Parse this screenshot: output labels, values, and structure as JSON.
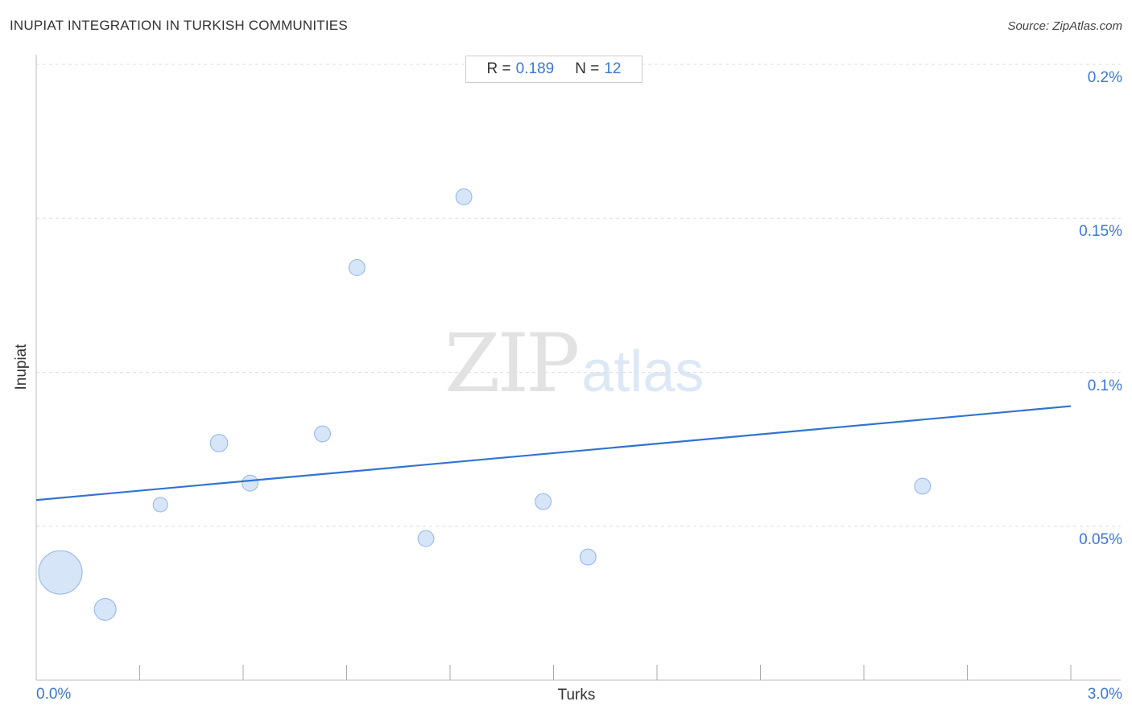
{
  "header": {
    "title": "INUPIAT INTEGRATION IN TURKISH COMMUNITIES",
    "source": "Source: ZipAtlas.com"
  },
  "stats": {
    "r_label": "R =",
    "r_value": "0.189",
    "n_label": "N =",
    "n_value": "12"
  },
  "watermark": {
    "zip": "ZIP",
    "atlas": "atlas"
  },
  "colors": {
    "accent": "#3a78d4",
    "point_fill": "#cfe0f7",
    "point_stroke": "#8fb4e6",
    "trend_line": "#2f74d0",
    "grid": "#dddddd"
  },
  "chart_data": {
    "type": "scatter",
    "title": "INUPIAT INTEGRATION IN TURKISH COMMUNITIES",
    "xlabel": "Turks",
    "ylabel": "Inupiat",
    "xlim": [
      0,
      3.0
    ],
    "ylim": [
      0,
      0.2
    ],
    "x_tick_labels": [
      "0.0%",
      "3.0%"
    ],
    "y_ticks": [
      {
        "value": 0.05,
        "label": "0.05%"
      },
      {
        "value": 0.1,
        "label": "0.1%"
      },
      {
        "value": 0.15,
        "label": "0.15%"
      },
      {
        "value": 0.2,
        "label": "0.2%"
      }
    ],
    "grid": "horizontal dashed",
    "points": [
      {
        "x": 0.07,
        "y": 0.035,
        "weight": 3
      },
      {
        "x": 0.2,
        "y": 0.023,
        "weight": 1.5
      },
      {
        "x": 0.36,
        "y": 0.057,
        "weight": 1
      },
      {
        "x": 0.53,
        "y": 0.077,
        "weight": 1.2
      },
      {
        "x": 0.62,
        "y": 0.064,
        "weight": 1.1
      },
      {
        "x": 0.83,
        "y": 0.08,
        "weight": 1.1
      },
      {
        "x": 0.93,
        "y": 0.134,
        "weight": 1.1
      },
      {
        "x": 1.13,
        "y": 0.046,
        "weight": 1.1
      },
      {
        "x": 1.24,
        "y": 0.157,
        "weight": 1.1
      },
      {
        "x": 1.47,
        "y": 0.058,
        "weight": 1.1
      },
      {
        "x": 1.6,
        "y": 0.04,
        "weight": 1.1
      },
      {
        "x": 2.57,
        "y": 0.063,
        "weight": 1.1
      }
    ],
    "trend_line": {
      "x": [
        0,
        3.0
      ],
      "y": [
        0.0585,
        0.089
      ]
    }
  }
}
